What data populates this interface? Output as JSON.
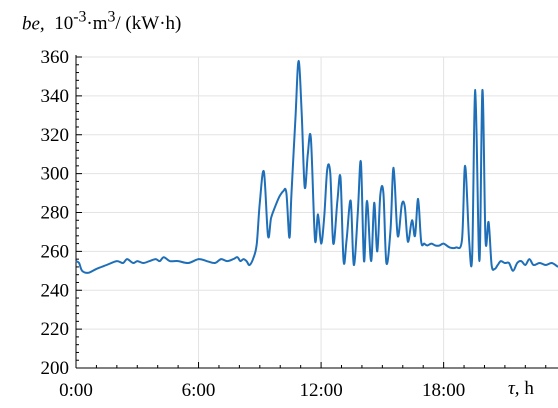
{
  "chart_data": {
    "type": "line",
    "ylabel_var": "be,",
    "ylabel_unit_html": "10<sup>-3</sup>·m<sup>3</sup>/ (kW·h)",
    "xlabel_var": "τ,",
    "xlabel_unit": "h",
    "xlim": [
      0,
      23.6
    ],
    "ylim": [
      200,
      360
    ],
    "xticks": [
      0,
      6,
      12,
      18
    ],
    "xtick_labels": [
      "0:00",
      "6:00",
      "12:00",
      "18:00"
    ],
    "yticks": [
      200,
      220,
      240,
      260,
      280,
      300,
      320,
      340,
      360
    ],
    "ytick_labels": [
      "200",
      "220",
      "240",
      "260",
      "280",
      "300",
      "320",
      "340",
      "360"
    ],
    "grid": true,
    "series_color": "#1f6fb8",
    "series": [
      {
        "x": [
          0.0,
          0.15,
          0.3,
          0.6,
          1.0,
          1.5,
          2.0,
          2.3,
          2.5,
          2.8,
          3.0,
          3.3,
          3.6,
          3.9,
          4.1,
          4.3,
          4.6,
          5.0,
          5.5,
          6.0,
          6.4,
          6.8,
          7.1,
          7.4,
          7.7,
          7.9,
          8.05,
          8.2,
          8.35,
          8.5,
          8.7,
          8.85,
          9.0,
          9.2,
          9.4,
          9.55,
          9.75,
          9.95,
          10.15,
          10.3,
          10.45,
          10.55,
          10.75,
          10.9,
          11.05,
          11.2,
          11.35,
          11.5,
          11.7,
          11.85,
          12.0,
          12.15,
          12.3,
          12.45,
          12.6,
          12.8,
          12.95,
          13.1,
          13.25,
          13.45,
          13.6,
          13.8,
          13.95,
          14.1,
          14.25,
          14.45,
          14.6,
          14.75,
          14.9,
          15.05,
          15.2,
          15.4,
          15.55,
          15.75,
          15.95,
          16.1,
          16.25,
          16.45,
          16.6,
          16.75,
          16.9,
          17.05,
          17.2,
          17.4,
          17.6,
          17.8,
          18.0,
          18.3,
          18.6,
          18.9,
          19.05,
          19.25,
          19.4,
          19.55,
          19.75,
          19.9,
          20.05,
          20.2,
          20.35,
          20.5,
          20.65,
          20.8,
          21.0,
          21.2,
          21.4,
          21.6,
          21.8,
          22.0,
          22.2,
          22.4,
          22.7,
          23.0,
          23.3,
          23.6
        ],
        "values": [
          255,
          254,
          250,
          249,
          251,
          253,
          255,
          254,
          256,
          254,
          255,
          254,
          255,
          256,
          255,
          257,
          255,
          255,
          254,
          256,
          255,
          254,
          256,
          255,
          256,
          257,
          255,
          256,
          255,
          253,
          257,
          264,
          285,
          301,
          268,
          277,
          283,
          288,
          291,
          290,
          267,
          290,
          330,
          358,
          331,
          293,
          310,
          318,
          266,
          279,
          264,
          277,
          302,
          300,
          264,
          286,
          298,
          255,
          266,
          286,
          253,
          280,
          306,
          255,
          286,
          255,
          285,
          260,
          289,
          290,
          254,
          271,
          303,
          268,
          284,
          283,
          265,
          276,
          268,
          287,
          265,
          264,
          263,
          264,
          263,
          263,
          264,
          262,
          262,
          266,
          304,
          265,
          258,
          343,
          255,
          343,
          266,
          275,
          253,
          251,
          253,
          255,
          254,
          254,
          250,
          254,
          255,
          253,
          256,
          253,
          254,
          253,
          254,
          252
        ]
      }
    ]
  }
}
